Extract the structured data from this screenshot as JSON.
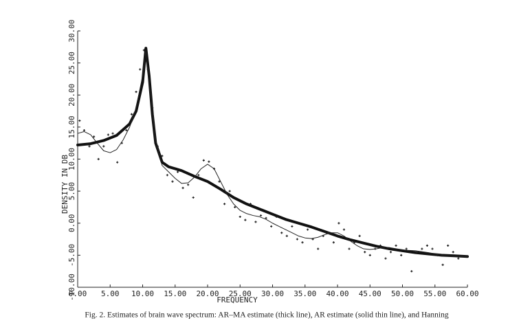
{
  "chart_data": {
    "type": "line",
    "xlabel": "FREQUENCY",
    "ylabel": "DENSITY IN DB",
    "caption": "Fig. 2.   Estimates of brain wave spectrum: AR–MA estimate (thick line), AR estimate (solid thin line), and Hanning",
    "xlim": [
      0,
      60
    ],
    "ylim": [
      -10,
      30
    ],
    "xticks": [
      {
        "value": 0,
        "label": "0.00"
      },
      {
        "value": 5,
        "label": "5.00"
      },
      {
        "value": 10,
        "label": "10.00"
      },
      {
        "value": 15,
        "label": "15.00"
      },
      {
        "value": 20,
        "label": "20.00"
      },
      {
        "value": 25,
        "label": "25.00"
      },
      {
        "value": 30,
        "label": "30.00"
      },
      {
        "value": 35,
        "label": "35.00"
      },
      {
        "value": 40,
        "label": "40.00"
      },
      {
        "value": 45,
        "label": "45.00"
      },
      {
        "value": 50,
        "label": "50.00"
      },
      {
        "value": 55,
        "label": "55.00"
      },
      {
        "value": 60,
        "label": "60.00"
      }
    ],
    "yticks": [
      {
        "value": -10,
        "label": "-10.00"
      },
      {
        "value": -5,
        "label": "-5.00"
      },
      {
        "value": 0,
        "label": "0.00"
      },
      {
        "value": 5,
        "label": "5.00"
      },
      {
        "value": 10,
        "label": "10.00"
      },
      {
        "value": 15,
        "label": "15.00"
      },
      {
        "value": 20,
        "label": "20.00"
      },
      {
        "value": 25,
        "label": "25.00"
      },
      {
        "value": 30,
        "label": "30.00"
      }
    ],
    "series": [
      {
        "color": "#111111",
        "line_width": 4,
        "x": [
          0,
          2,
          4,
          6,
          8,
          9,
          10,
          10.5,
          11,
          11.5,
          12,
          13,
          14,
          16,
          18,
          20,
          22,
          24,
          26,
          28,
          30,
          32,
          34,
          36,
          38,
          40,
          42,
          44,
          46,
          48,
          50,
          52,
          54,
          56,
          58,
          60
        ],
        "values": [
          12.2,
          12.4,
          12.9,
          13.7,
          15.5,
          17.5,
          22,
          27.3,
          23,
          17,
          12.5,
          9.5,
          8.8,
          8.2,
          7.3,
          6.5,
          5.3,
          4,
          3,
          2.2,
          1.4,
          0.6,
          0,
          -0.6,
          -1.3,
          -2,
          -2.6,
          -3.1,
          -3.6,
          -4,
          -4.3,
          -4.6,
          -4.8,
          -5,
          -5.1,
          -5.2
        ]
      },
      {
        "color": "#222222",
        "line_width": 1,
        "x": [
          0,
          1,
          2,
          3,
          4,
          5,
          6,
          7,
          8,
          9,
          10,
          10.5,
          11,
          12,
          13,
          14,
          15,
          16,
          17,
          18,
          19,
          20,
          21,
          22,
          23,
          24,
          25,
          26,
          27,
          28,
          29,
          30,
          31,
          32,
          33,
          34,
          35,
          36,
          37,
          38,
          39,
          40,
          41,
          42,
          43,
          44,
          45,
          46,
          47,
          48,
          49,
          50,
          52,
          54,
          56,
          58,
          60
        ],
        "values": [
          14,
          14.3,
          13.8,
          12.5,
          11.3,
          11,
          11.5,
          13,
          15,
          18,
          23,
          27,
          22,
          13,
          9,
          8,
          7,
          6.2,
          6.3,
          7.2,
          8.5,
          9.2,
          8.5,
          6.5,
          4.5,
          3,
          2,
          1.5,
          1.2,
          1,
          0.6,
          0,
          -0.5,
          -1,
          -1.5,
          -2,
          -2.3,
          -2.4,
          -2.2,
          -1.8,
          -1.5,
          -1.5,
          -2,
          -2.8,
          -3.5,
          -4,
          -4.1,
          -4,
          -3.8,
          -3.8,
          -4,
          -4.2,
          -4.3,
          -4.6,
          -5,
          -5.2,
          -5.2
        ]
      },
      {
        "color": "#222222",
        "marker": "cross",
        "x": [
          0.3,
          1,
          1.8,
          2.5,
          3.2,
          4,
          4.7,
          5.4,
          6.1,
          6.8,
          7.5,
          8.3,
          9,
          9.6,
          10.2,
          10.8,
          11.5,
          12.3,
          13,
          13.8,
          14.6,
          15.4,
          16.2,
          17,
          17.8,
          18.6,
          19.4,
          20.2,
          21,
          21.8,
          22.6,
          23.4,
          24.2,
          25,
          25.8,
          26.6,
          27.4,
          28.2,
          29,
          29.8,
          30.6,
          31.4,
          32.2,
          33,
          33.8,
          34.6,
          35.4,
          36.2,
          37,
          37.8,
          38.6,
          39.4,
          40.2,
          41,
          41.8,
          42.6,
          43.4,
          44.2,
          45,
          45.8,
          46.6,
          47.4,
          48.2,
          49,
          49.8,
          50.6,
          51.4,
          52.2,
          53,
          53.8,
          54.6,
          55.4,
          56.2,
          57,
          57.8,
          58.6
        ],
        "values": [
          16,
          14.5,
          12,
          13.5,
          10,
          12,
          13.8,
          14,
          9.5,
          12.5,
          14.5,
          17,
          20.5,
          24,
          27,
          24,
          18,
          12,
          10.5,
          7.5,
          6.5,
          8,
          5.5,
          6,
          4,
          7.5,
          9.8,
          9.6,
          8.5,
          6.5,
          3,
          5,
          2.5,
          1,
          0.5,
          3,
          0.2,
          1.2,
          0.8,
          -0.5,
          1,
          -1.5,
          -2,
          -0.5,
          -2.5,
          -3,
          -1,
          -2.5,
          -4,
          -2,
          -1.5,
          -3,
          0,
          -1,
          -4,
          -3,
          -2,
          -4.5,
          -5,
          -4,
          -3.5,
          -5.5,
          -4.5,
          -3.5,
          -5,
          -4,
          -7.5,
          -4.5,
          -4,
          -3.5,
          -4,
          -5,
          -6.5,
          -3.5,
          -4.5,
          -5.5
        ]
      }
    ]
  }
}
